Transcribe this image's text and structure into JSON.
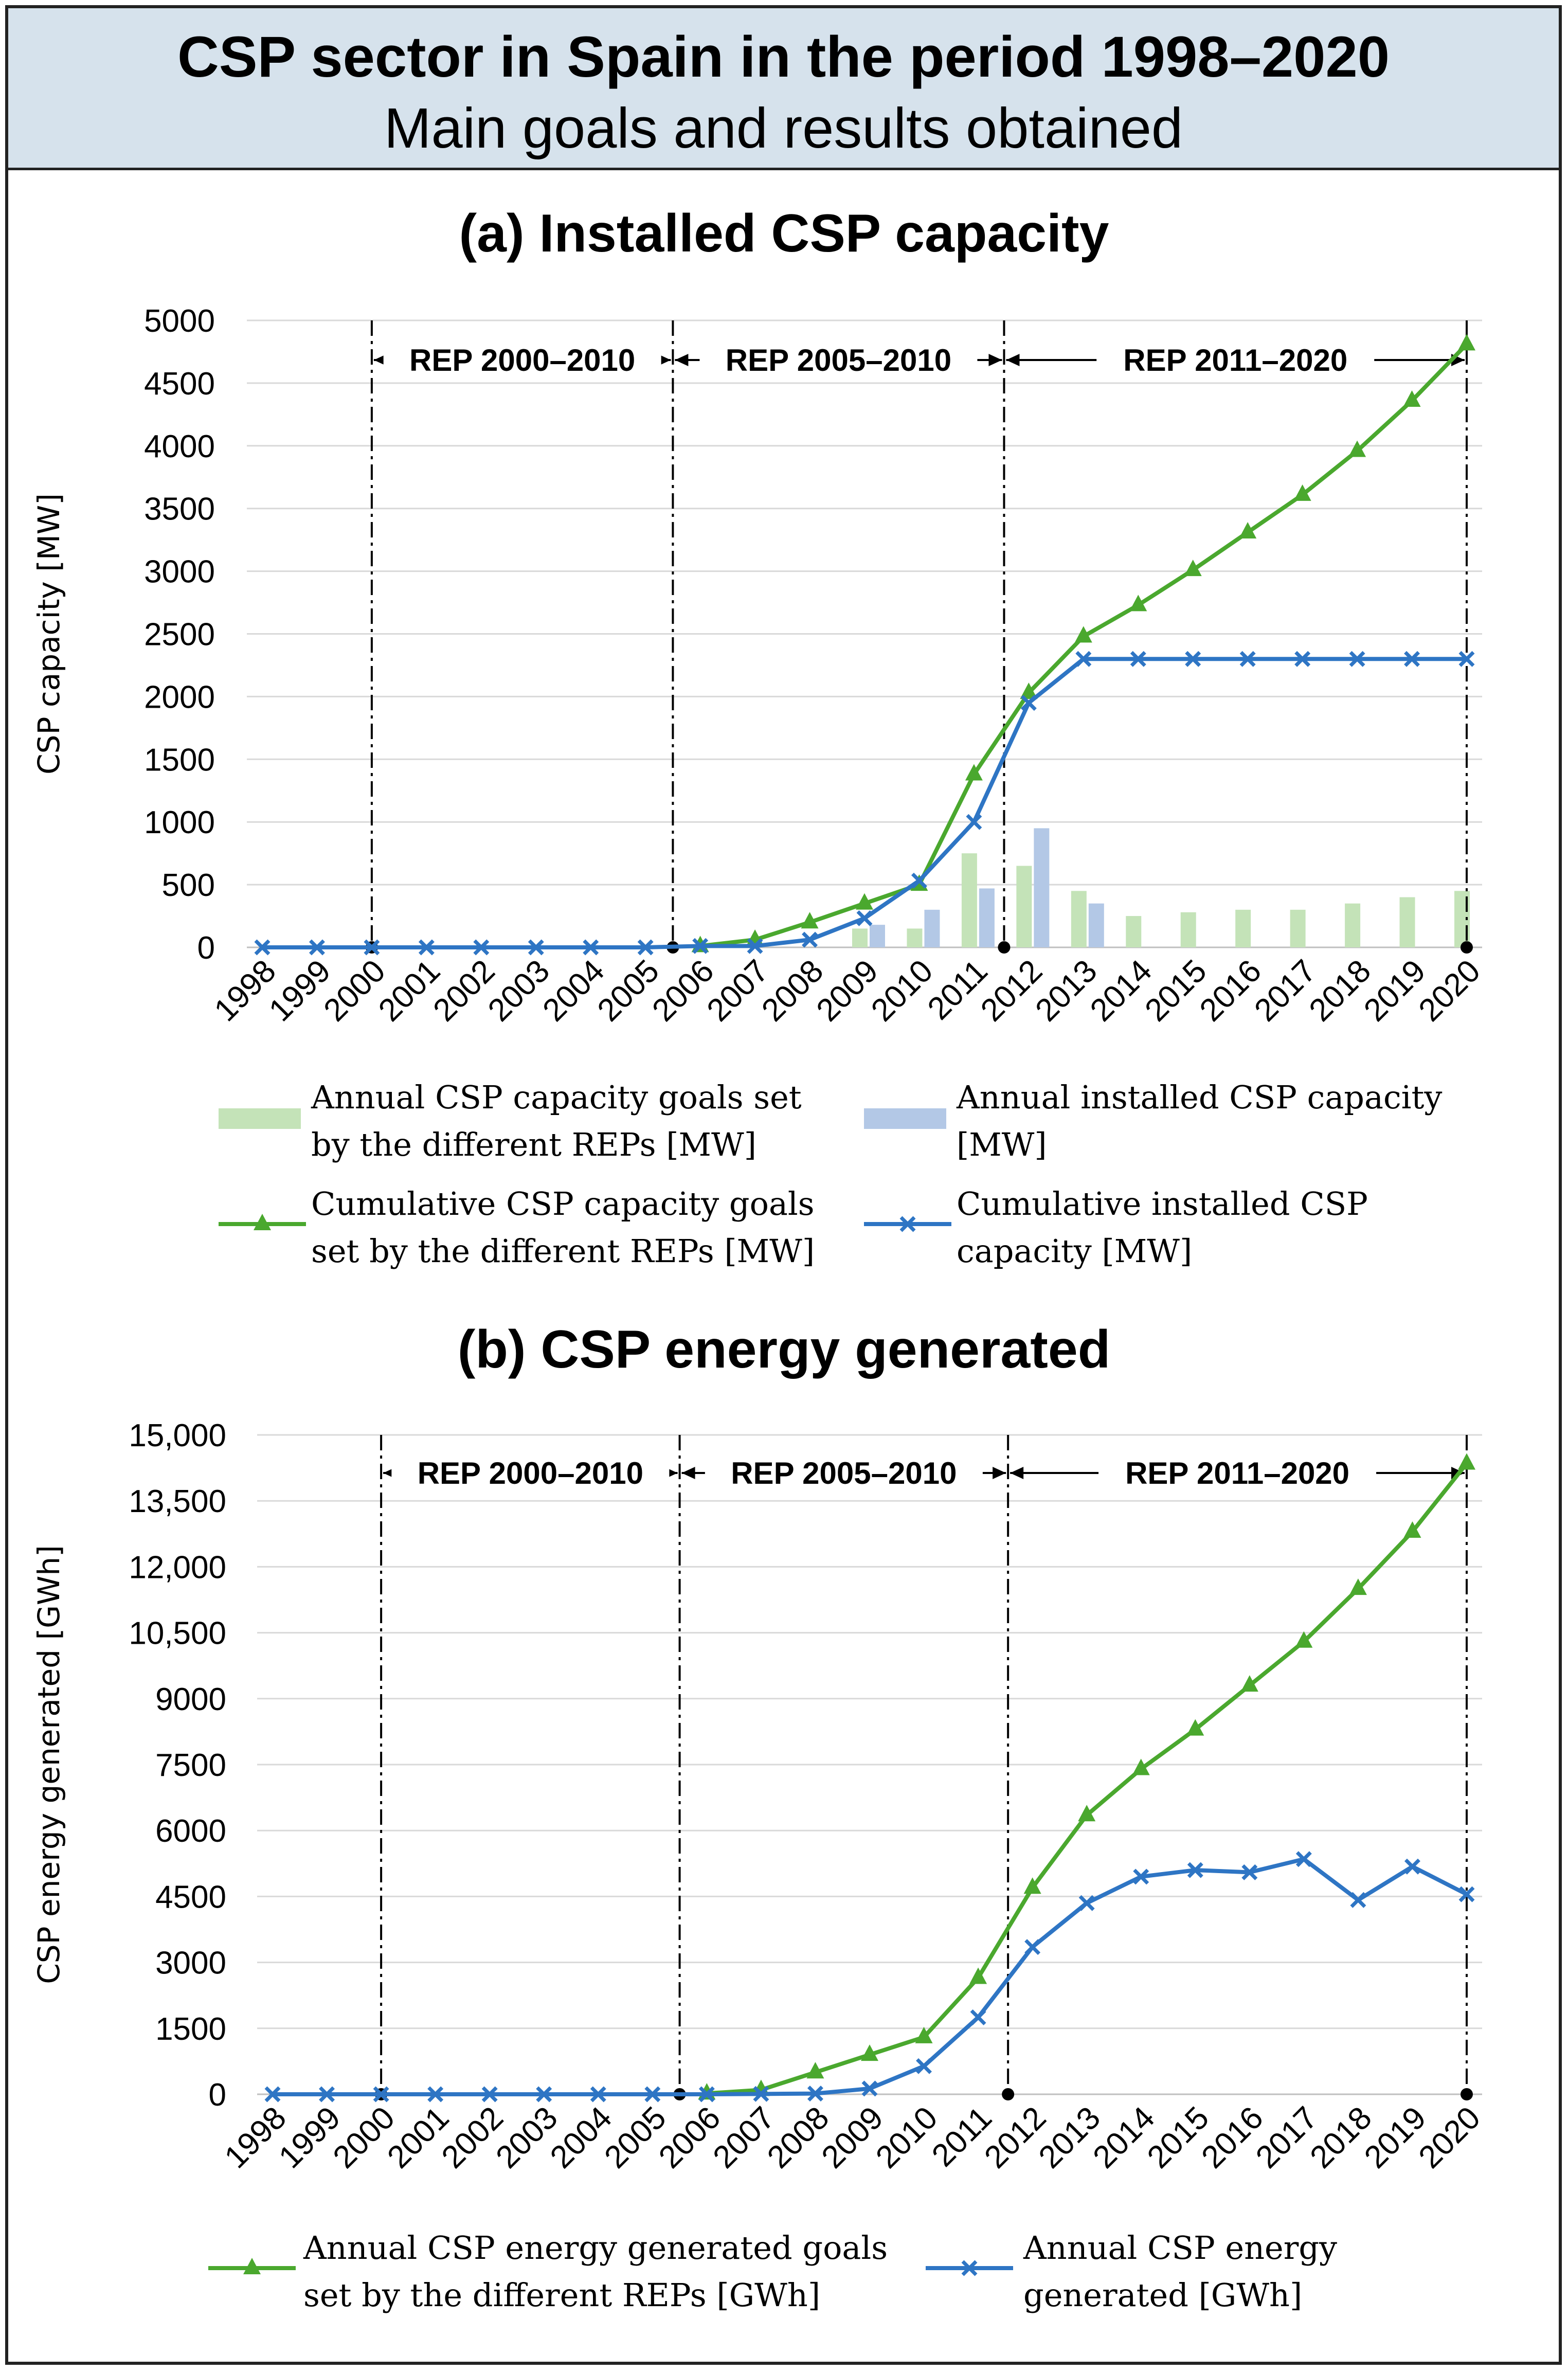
{
  "header": {
    "title": "CSP sector in Spain in the period 1998–2020",
    "subtitle": "Main goals and results obtained"
  },
  "colors": {
    "green_line": "#4aa82e",
    "blue_line": "#2e75c4",
    "green_bar": "#c4e3b8",
    "blue_bar": "#b3c8e6"
  },
  "chart_data": [
    {
      "type": "bar+line",
      "title": "(a) Installed CSP capacity",
      "ylabel": "CSP capacity [MW]",
      "xlabel": "",
      "ylim": [
        0,
        5000
      ],
      "yticks": [
        "0",
        "500",
        "1000",
        "1500",
        "2000",
        "2500",
        "3000",
        "3500",
        "4000",
        "4500",
        "5000"
      ],
      "categories": [
        "1998",
        "1999",
        "2000",
        "2001",
        "2002",
        "2003",
        "2004",
        "2005",
        "2006",
        "2007",
        "2008",
        "2009",
        "2010",
        "2011",
        "2012",
        "2013",
        "2014",
        "2015",
        "2016",
        "2017",
        "2018",
        "2019",
        "2020"
      ],
      "periods": [
        {
          "label": "REP 2000–2010",
          "from": "2000",
          "to": "2005"
        },
        {
          "label": "REP 2005–2010",
          "from": "2005",
          "to": "2011"
        },
        {
          "label": "REP 2011–2020",
          "from": "2011",
          "to": "2020"
        }
      ],
      "series": [
        {
          "name": "Annual CSP capacity goals set by the different REPs [MW]",
          "kind": "bar",
          "values": [
            null,
            null,
            null,
            null,
            null,
            null,
            null,
            null,
            null,
            null,
            null,
            150,
            150,
            750,
            650,
            450,
            250,
            280,
            300,
            300,
            350,
            400,
            450
          ]
        },
        {
          "name": "Annual installed CSP capacity [MW]",
          "kind": "bar",
          "values": [
            null,
            null,
            null,
            null,
            null,
            null,
            null,
            null,
            null,
            null,
            null,
            180,
            300,
            470,
            950,
            350,
            null,
            null,
            null,
            null,
            null,
            null,
            null
          ]
        },
        {
          "name": "Cumulative CSP capacity goals set by the different REPs [MW]",
          "kind": "line-triangle",
          "values": [
            null,
            null,
            null,
            null,
            null,
            null,
            null,
            null,
            11,
            61,
            200,
            350,
            500,
            1380,
            2030,
            2480,
            2730,
            3010,
            3310,
            3610,
            3960,
            4360,
            4810
          ]
        },
        {
          "name": "Cumulative installed CSP capacity [MW]",
          "kind": "line-x",
          "values": [
            0,
            0,
            0,
            0,
            0,
            0,
            0,
            0,
            11,
            11,
            61,
            232,
            532,
            1000,
            1950,
            2300,
            2300,
            2300,
            2300,
            2300,
            2300,
            2300,
            2300
          ]
        }
      ],
      "legend": [
        {
          "line1": "Annual CSP capacity goals set",
          "line2": "by the different REPs [MW]"
        },
        {
          "line1": "Annual installed CSP capacity",
          "line2": "[MW]"
        },
        {
          "line1": "Cumulative CSP capacity goals",
          "line2": "set by the different REPs [MW]"
        },
        {
          "line1": "Cumulative installed CSP",
          "line2": "capacity [MW]"
        }
      ]
    },
    {
      "type": "line",
      "title": "(b) CSP energy generated",
      "ylabel": "CSP energy generated [GWh]",
      "xlabel": "",
      "ylim": [
        0,
        15000
      ],
      "yticks": [
        "0",
        "1500",
        "3000",
        "4500",
        "6000",
        "7500",
        "9000",
        "10,500",
        "12,000",
        "13,500",
        "15,000"
      ],
      "categories": [
        "1998",
        "1999",
        "2000",
        "2001",
        "2002",
        "2003",
        "2004",
        "2005",
        "2006",
        "2007",
        "2008",
        "2009",
        "2010",
        "2011",
        "2012",
        "2013",
        "2014",
        "2015",
        "2016",
        "2017",
        "2018",
        "2019",
        "2020"
      ],
      "periods": [
        {
          "label": "REP 2000–2010",
          "from": "2000",
          "to": "2005"
        },
        {
          "label": "REP 2005–2010",
          "from": "2005",
          "to": "2011"
        },
        {
          "label": "REP 2011–2020",
          "from": "2011",
          "to": "2020"
        }
      ],
      "series": [
        {
          "name": "Annual CSP energy generated goals set by the different REPs [GWh]",
          "kind": "line-triangle",
          "values": [
            null,
            null,
            null,
            null,
            null,
            null,
            null,
            null,
            20,
            100,
            500,
            900,
            1300,
            2650,
            4700,
            6350,
            7400,
            8300,
            9300,
            10300,
            11500,
            12800,
            14350
          ]
        },
        {
          "name": "Annual CSP energy generated [GWh]",
          "kind": "line-x",
          "values": [
            0,
            0,
            0,
            0,
            0,
            0,
            0,
            0,
            0,
            8,
            16,
            130,
            640,
            1750,
            3350,
            4350,
            4950,
            5100,
            5050,
            5350,
            4420,
            5180,
            4550
          ]
        }
      ],
      "legend": [
        {
          "line1": "Annual CSP energy generated goals",
          "line2": "set by the different REPs [GWh]"
        },
        {
          "line1": "Annual CSP energy",
          "line2": "generated [GWh]"
        }
      ]
    }
  ]
}
